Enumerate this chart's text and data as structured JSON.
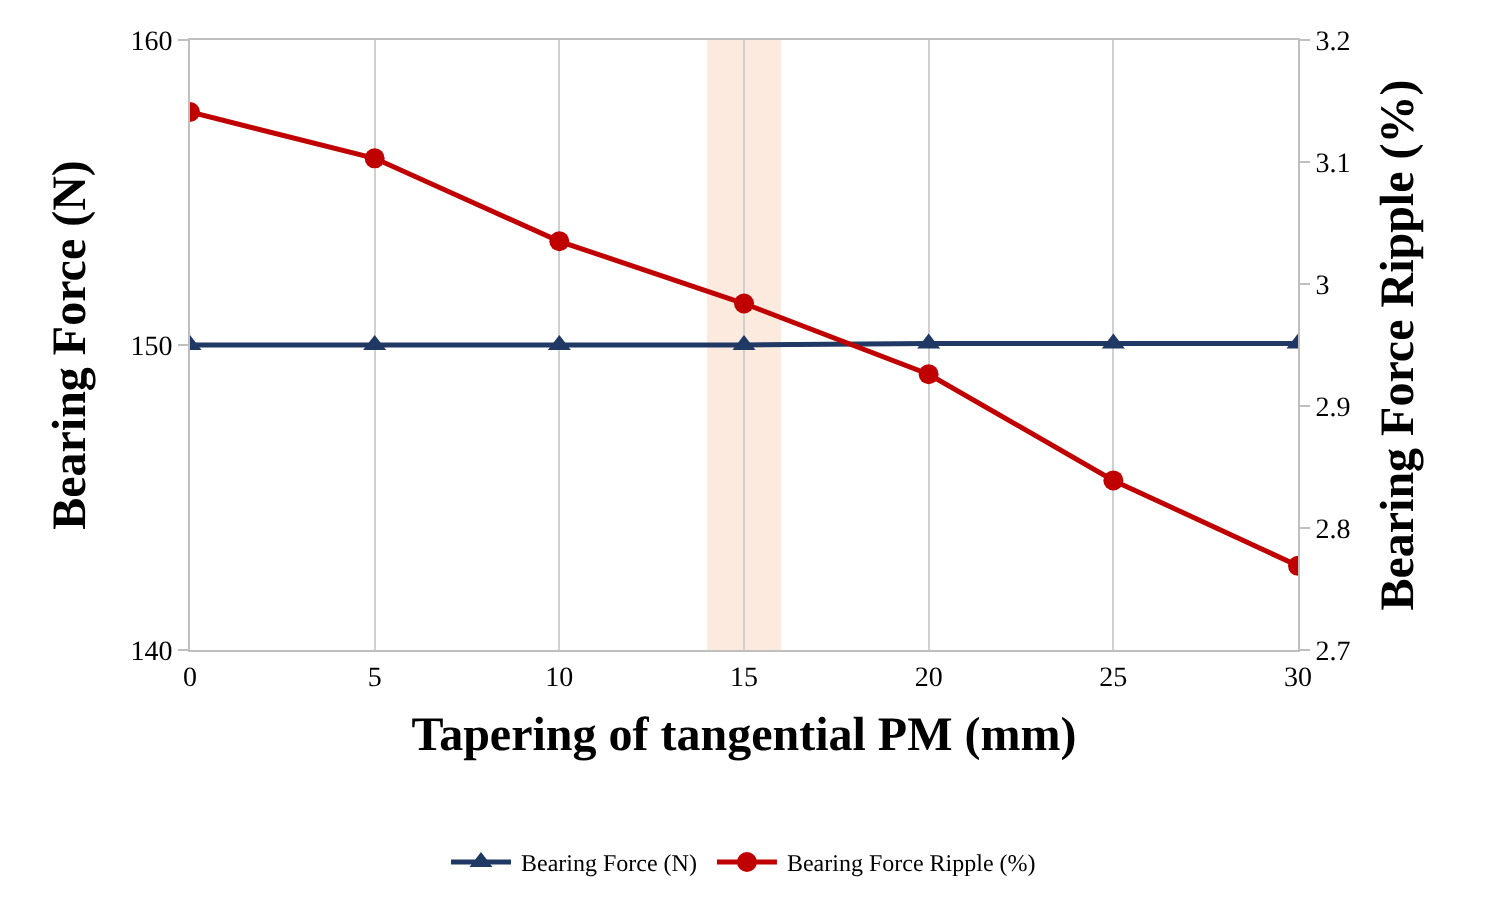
{
  "chart_data": {
    "type": "line",
    "xlabel": "Tapering of tangential PM (mm)",
    "ylabel": "Bearing Force (N)",
    "y2label": "Bearing Force Ripple (%)",
    "x": [
      0,
      5,
      10,
      15,
      20,
      25,
      30
    ],
    "series": [
      {
        "name": "Bearing Force (N)",
        "color": "#1f3864",
        "marker": "triangle",
        "values": [
          150.0,
          150.0,
          150.0,
          150.0,
          150.05,
          150.05,
          150.05
        ]
      },
      {
        "name": "Bearing Force Ripple (%)",
        "color": "#c00000",
        "marker": "circle",
        "axis": "y2",
        "values": [
          3.141,
          3.103,
          3.035,
          2.984,
          2.926,
          2.839,
          2.769
        ]
      }
    ],
    "xlim": [
      0,
      30
    ],
    "xticks": [
      0,
      5,
      10,
      15,
      20,
      25,
      30
    ],
    "ylim": [
      140,
      160
    ],
    "yticks": [
      140,
      150,
      160
    ],
    "y2lim": [
      2.7,
      3.2
    ],
    "y2ticks": [
      2.7,
      2.8,
      2.9,
      3,
      3.1,
      3.2
    ],
    "bands": [
      {
        "axis": "x",
        "from": 14,
        "to": 16,
        "color": "#fbe5d6"
      }
    ],
    "grid": "x",
    "legend": "bottom",
    "line_style": "solid"
  }
}
